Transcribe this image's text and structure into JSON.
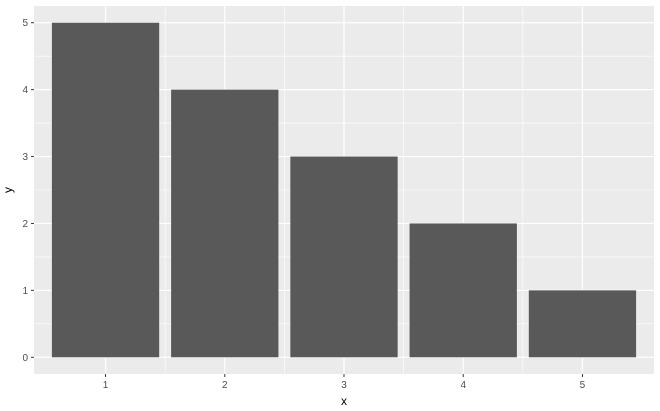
{
  "chart_data": {
    "type": "bar",
    "categories": [
      "1",
      "2",
      "3",
      "4",
      "5"
    ],
    "values": [
      5,
      4,
      3,
      2,
      1
    ],
    "xlabel": "x",
    "ylabel": "y",
    "ylim": [
      0,
      5
    ],
    "yticks": [
      0,
      1,
      2,
      3,
      4,
      5
    ],
    "grid": true,
    "colors": {
      "panel": "#ebebeb",
      "grid_major": "#ffffff",
      "bar": "#595959",
      "tick_label": "#4d4d4d",
      "tick_mark": "#333333"
    }
  }
}
